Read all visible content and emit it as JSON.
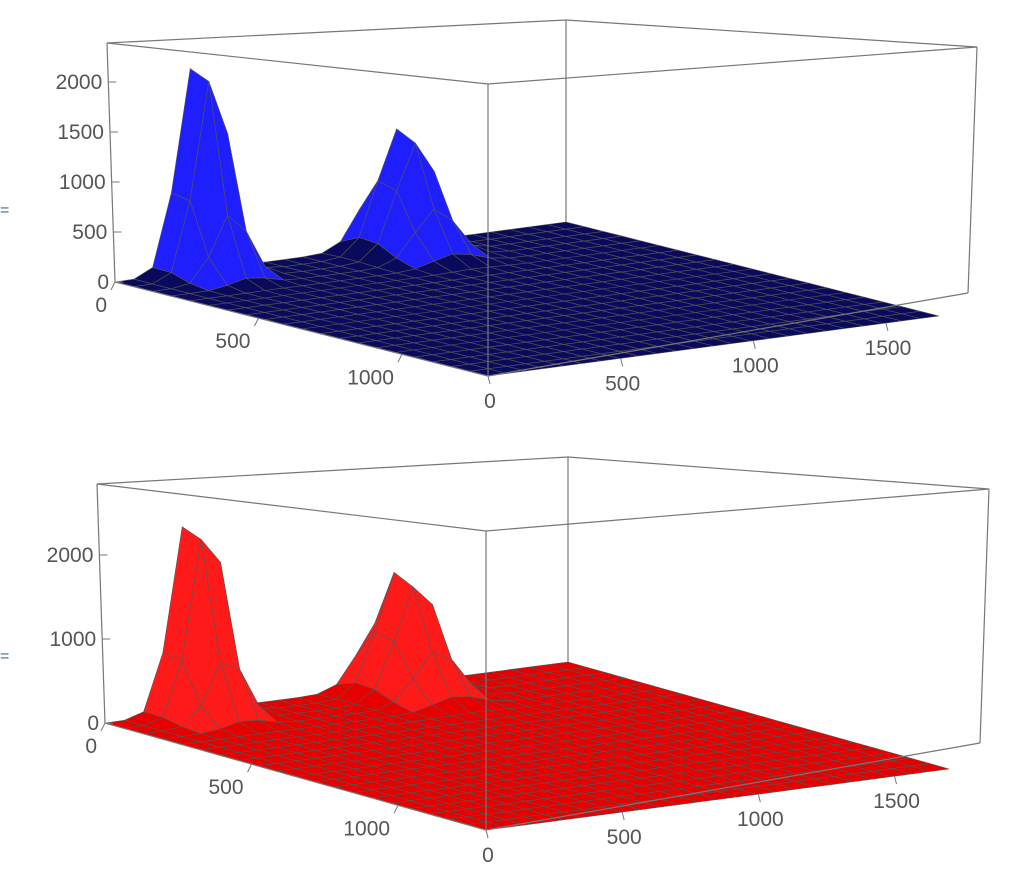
{
  "output_markers": [
    "=",
    "="
  ],
  "chart_data": [
    {
      "type": "surface3d",
      "color": "#1414c8",
      "surface_color": "#0a0a5c",
      "peak_color": "#1e1eff",
      "x_ticks": [
        "0",
        "500",
        "1000"
      ],
      "y_ticks": [
        "0",
        "500",
        "1000",
        "1500"
      ],
      "z_ticks": [
        "0",
        "500",
        "1000",
        "1500",
        "2000"
      ],
      "xlim": [
        0,
        1300
      ],
      "ylim": [
        0,
        1700
      ],
      "zlim": [
        0,
        2400
      ],
      "peaks": [
        {
          "x": 30,
          "y": 300,
          "height": 2350,
          "width": 90
        },
        {
          "x": 90,
          "y": 1000,
          "height": 1300,
          "width": 110
        }
      ]
    },
    {
      "type": "surface3d",
      "color": "#e00000",
      "surface_color": "#e60000",
      "peak_color": "#ff1a1a",
      "x_ticks": [
        "0",
        "500",
        "1000"
      ],
      "y_ticks": [
        "0",
        "500",
        "1000",
        "1500"
      ],
      "z_ticks": [
        "0",
        "1000",
        "2000"
      ],
      "xlim": [
        0,
        1300
      ],
      "ylim": [
        0,
        1700
      ],
      "zlim": [
        0,
        2700
      ],
      "peaks": [
        {
          "x": 30,
          "y": 310,
          "height": 2700,
          "width": 90
        },
        {
          "x": 90,
          "y": 1010,
          "height": 1550,
          "width": 110
        }
      ]
    }
  ]
}
